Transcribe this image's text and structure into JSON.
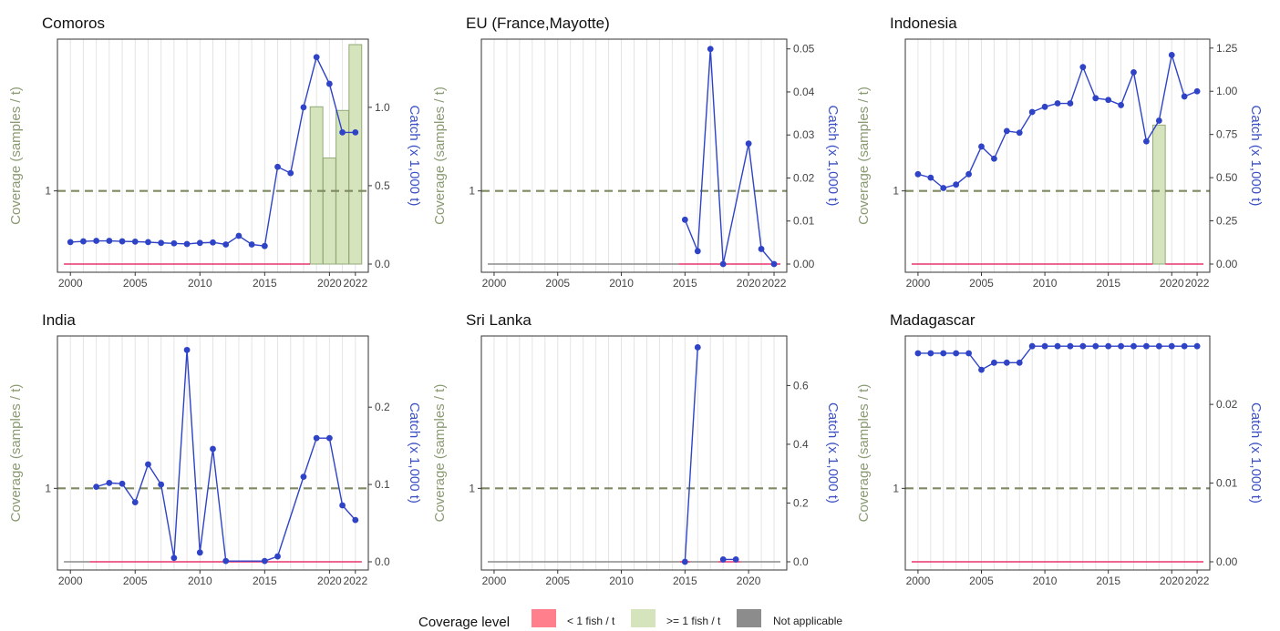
{
  "colors": {
    "coverage_axis": "#8a9a72",
    "catch_axis": "#3a4fc4",
    "catch_line": "#2f43c7",
    "below": "#e8356b",
    "above_fill": "#d6e4bd",
    "above_stroke": "#92aa78",
    "not_applicable": "#8c8c8c",
    "threshold": "#7e8a62",
    "grid": "#e4e4e4",
    "panel_border": "#333333"
  },
  "legend": {
    "title": "Coverage level",
    "items": [
      {
        "label": "< 1 fish / t",
        "color": "#ff7f8c"
      },
      {
        "label": ">= 1 fish / t",
        "color": "#d6e4bd"
      },
      {
        "label": "Not applicable",
        "color": "#8c8c8c"
      }
    ]
  },
  "chart_data": [
    {
      "type": "bar+line",
      "title": "Comoros",
      "xlabel": "",
      "ylabel_left": "Coverage (samples / t)",
      "ylabel_right": "Catch (x 1,000 t)",
      "x_ticks": [
        2000,
        2005,
        2010,
        2015,
        2020,
        2022
      ],
      "x_range": [
        1999,
        2023
      ],
      "left_ticks": [
        {
          "label": "1",
          "value": 1
        }
      ],
      "left_max": 3.0,
      "right_ticks": [
        0.0,
        0.5,
        1.0
      ],
      "right_tick_labels": [
        "0.0",
        "0.5",
        "1.0"
      ],
      "right_max": 1.4,
      "catch_x": [
        2000,
        2001,
        2002,
        2003,
        2004,
        2005,
        2006,
        2007,
        2008,
        2009,
        2010,
        2011,
        2012,
        2013,
        2014,
        2015,
        2016,
        2017,
        2018,
        2019,
        2020,
        2021,
        2022
      ],
      "catch_y": [
        0.14,
        0.145,
        0.148,
        0.148,
        0.145,
        0.143,
        0.14,
        0.135,
        0.132,
        0.128,
        0.135,
        0.138,
        0.125,
        0.18,
        0.125,
        0.115,
        0.62,
        0.58,
        1.0,
        1.32,
        1.15,
        0.84,
        0.84
      ],
      "coverage_bars": [
        {
          "year": 2019,
          "value": 2.15
        },
        {
          "year": 2020,
          "value": 1.45
        },
        {
          "year": 2021,
          "value": 2.1
        },
        {
          "year": 2022,
          "value": 3.0
        }
      ],
      "coverage_segments": [
        {
          "from": 1999.5,
          "to": 2018.5,
          "level": "below"
        }
      ]
    },
    {
      "type": "bar+line",
      "title": "EU (France,Mayotte)",
      "xlabel": "",
      "ylabel_left": "Coverage (samples / t)",
      "ylabel_right": "Catch (x 1,000 t)",
      "x_ticks": [
        2000,
        2005,
        2010,
        2015,
        2020,
        2022
      ],
      "x_range": [
        1999,
        2023
      ],
      "left_ticks": [
        {
          "label": "1",
          "value": 1
        }
      ],
      "left_max": 3.0,
      "right_ticks": [
        0.0,
        0.01,
        0.02,
        0.03,
        0.04,
        0.05
      ],
      "right_tick_labels": [
        "0.00",
        "0.01",
        "0.02",
        "0.03",
        "0.04",
        "0.05"
      ],
      "right_max": 0.051,
      "catch_x": [
        2015,
        2016,
        2017,
        2018,
        2020,
        2021,
        2022
      ],
      "catch_y": [
        0.0103,
        0.003,
        0.05,
        0.0,
        0.028,
        0.0035,
        0.0
      ],
      "coverage_bars": [],
      "coverage_segments": [
        {
          "from": 1999.5,
          "to": 2014.5,
          "level": "na"
        },
        {
          "from": 2014.5,
          "to": 2022.5,
          "level": "below"
        }
      ]
    },
    {
      "type": "bar+line",
      "title": "Indonesia",
      "xlabel": "",
      "ylabel_left": "Coverage (samples / t)",
      "ylabel_right": "Catch (x 1,000 t)",
      "x_ticks": [
        2000,
        2005,
        2010,
        2015,
        2020,
        2022
      ],
      "x_range": [
        1999,
        2023
      ],
      "left_ticks": [
        {
          "label": "1",
          "value": 1
        }
      ],
      "left_max": 3.0,
      "right_ticks": [
        0.0,
        0.25,
        0.5,
        0.75,
        1.0,
        1.25
      ],
      "right_tick_labels": [
        "0.00",
        "0.25",
        "0.50",
        "0.75",
        "1.00",
        "1.25"
      ],
      "right_max": 1.27,
      "catch_x": [
        2000,
        2001,
        2002,
        2003,
        2004,
        2005,
        2006,
        2007,
        2008,
        2009,
        2010,
        2011,
        2012,
        2013,
        2014,
        2015,
        2016,
        2017,
        2018,
        2019,
        2020,
        2021,
        2022
      ],
      "catch_y": [
        0.52,
        0.5,
        0.44,
        0.46,
        0.52,
        0.68,
        0.61,
        0.77,
        0.76,
        0.88,
        0.91,
        0.93,
        0.93,
        1.14,
        0.96,
        0.95,
        0.92,
        1.11,
        0.71,
        0.83,
        1.21,
        0.97,
        1.0
      ],
      "coverage_bars": [
        {
          "year": 2019,
          "value": 1.9
        }
      ],
      "coverage_segments": [
        {
          "from": 1999.5,
          "to": 2018.5,
          "level": "below"
        },
        {
          "from": 2019.5,
          "to": 2022.5,
          "level": "below"
        }
      ]
    },
    {
      "type": "bar+line",
      "title": "India",
      "xlabel": "",
      "ylabel_left": "Coverage (samples / t)",
      "ylabel_right": "Catch (x 1,000 t)",
      "x_ticks": [
        2000,
        2005,
        2010,
        2015,
        2020,
        2022
      ],
      "x_range": [
        1999,
        2023
      ],
      "left_ticks": [
        {
          "label": "1",
          "value": 1
        }
      ],
      "left_max": 3.0,
      "right_ticks": [
        0.0,
        0.1,
        0.2
      ],
      "right_tick_labels": [
        "0.0",
        "0.1",
        "0.2"
      ],
      "right_max": 0.285,
      "catch_x": [
        2002,
        2003,
        2004,
        2005,
        2006,
        2007,
        2008,
        2009,
        2010,
        2011,
        2012,
        2015,
        2016,
        2018,
        2019,
        2020,
        2021,
        2022
      ],
      "catch_y": [
        0.097,
        0.102,
        0.101,
        0.077,
        0.126,
        0.1,
        0.005,
        0.274,
        0.012,
        0.146,
        0.001,
        0.001,
        0.007,
        0.11,
        0.16,
        0.16,
        0.073,
        0.054
      ],
      "coverage_bars": [],
      "coverage_segments": [
        {
          "from": 1999.5,
          "to": 2001.5,
          "level": "na"
        },
        {
          "from": 2001.5,
          "to": 2022.5,
          "level": "below"
        }
      ]
    },
    {
      "type": "bar+line",
      "title": "Sri Lanka",
      "xlabel": "",
      "ylabel_left": "Coverage (samples / t)",
      "ylabel_right": "Catch (x 1,000 t)",
      "x_ticks": [
        2000,
        2005,
        2010,
        2015,
        2020
      ],
      "x_range": [
        1999,
        2023
      ],
      "left_ticks": [
        {
          "label": "1",
          "value": 1
        }
      ],
      "left_max": 3.0,
      "right_ticks": [
        0.0,
        0.2,
        0.4,
        0.6
      ],
      "right_tick_labels": [
        "0.0",
        "0.2",
        "0.4",
        "0.6"
      ],
      "right_max": 0.75,
      "catch_x": [
        2015,
        2016
      ],
      "catch_y": [
        0.0,
        0.73
      ],
      "catch_x2": [
        2018,
        2019
      ],
      "catch_y2": [
        0.008,
        0.008
      ],
      "coverage_bars": [],
      "coverage_segments": [
        {
          "from": 1999.5,
          "to": 2014.6,
          "level": "na"
        },
        {
          "from": 2014.6,
          "to": 2015.4,
          "level": "below"
        },
        {
          "from": 2015.4,
          "to": 2017.6,
          "level": "na"
        },
        {
          "from": 2017.6,
          "to": 2019.4,
          "level": "below"
        },
        {
          "from": 2019.4,
          "to": 2022.5,
          "level": "na"
        }
      ]
    },
    {
      "type": "bar+line",
      "title": "Madagascar",
      "xlabel": "",
      "ylabel_left": "Coverage (samples / t)",
      "ylabel_right": "Catch (x 1,000 t)",
      "x_ticks": [
        2000,
        2005,
        2010,
        2015,
        2020,
        2022
      ],
      "x_range": [
        1999,
        2023
      ],
      "left_ticks": [
        {
          "label": "1",
          "value": 1
        }
      ],
      "left_max": 3.0,
      "right_ticks": [
        0.0,
        0.01,
        0.02
      ],
      "right_tick_labels": [
        "0.00",
        "0.01",
        "0.02"
      ],
      "right_max": 0.028,
      "catch_x": [
        2000,
        2001,
        2002,
        2003,
        2004,
        2005,
        2006,
        2007,
        2008,
        2009,
        2010,
        2011,
        2012,
        2013,
        2014,
        2015,
        2016,
        2017,
        2018,
        2019,
        2020,
        2021,
        2022
      ],
      "catch_y": [
        0.0265,
        0.0265,
        0.0265,
        0.0265,
        0.0265,
        0.0244,
        0.0253,
        0.0253,
        0.0253,
        0.0274,
        0.0274,
        0.0274,
        0.0274,
        0.0274,
        0.0274,
        0.0274,
        0.0274,
        0.0274,
        0.0274,
        0.0274,
        0.0274,
        0.0274,
        0.0274
      ],
      "coverage_bars": [],
      "coverage_segments": [
        {
          "from": 1999.5,
          "to": 2022.5,
          "level": "below"
        }
      ]
    }
  ]
}
